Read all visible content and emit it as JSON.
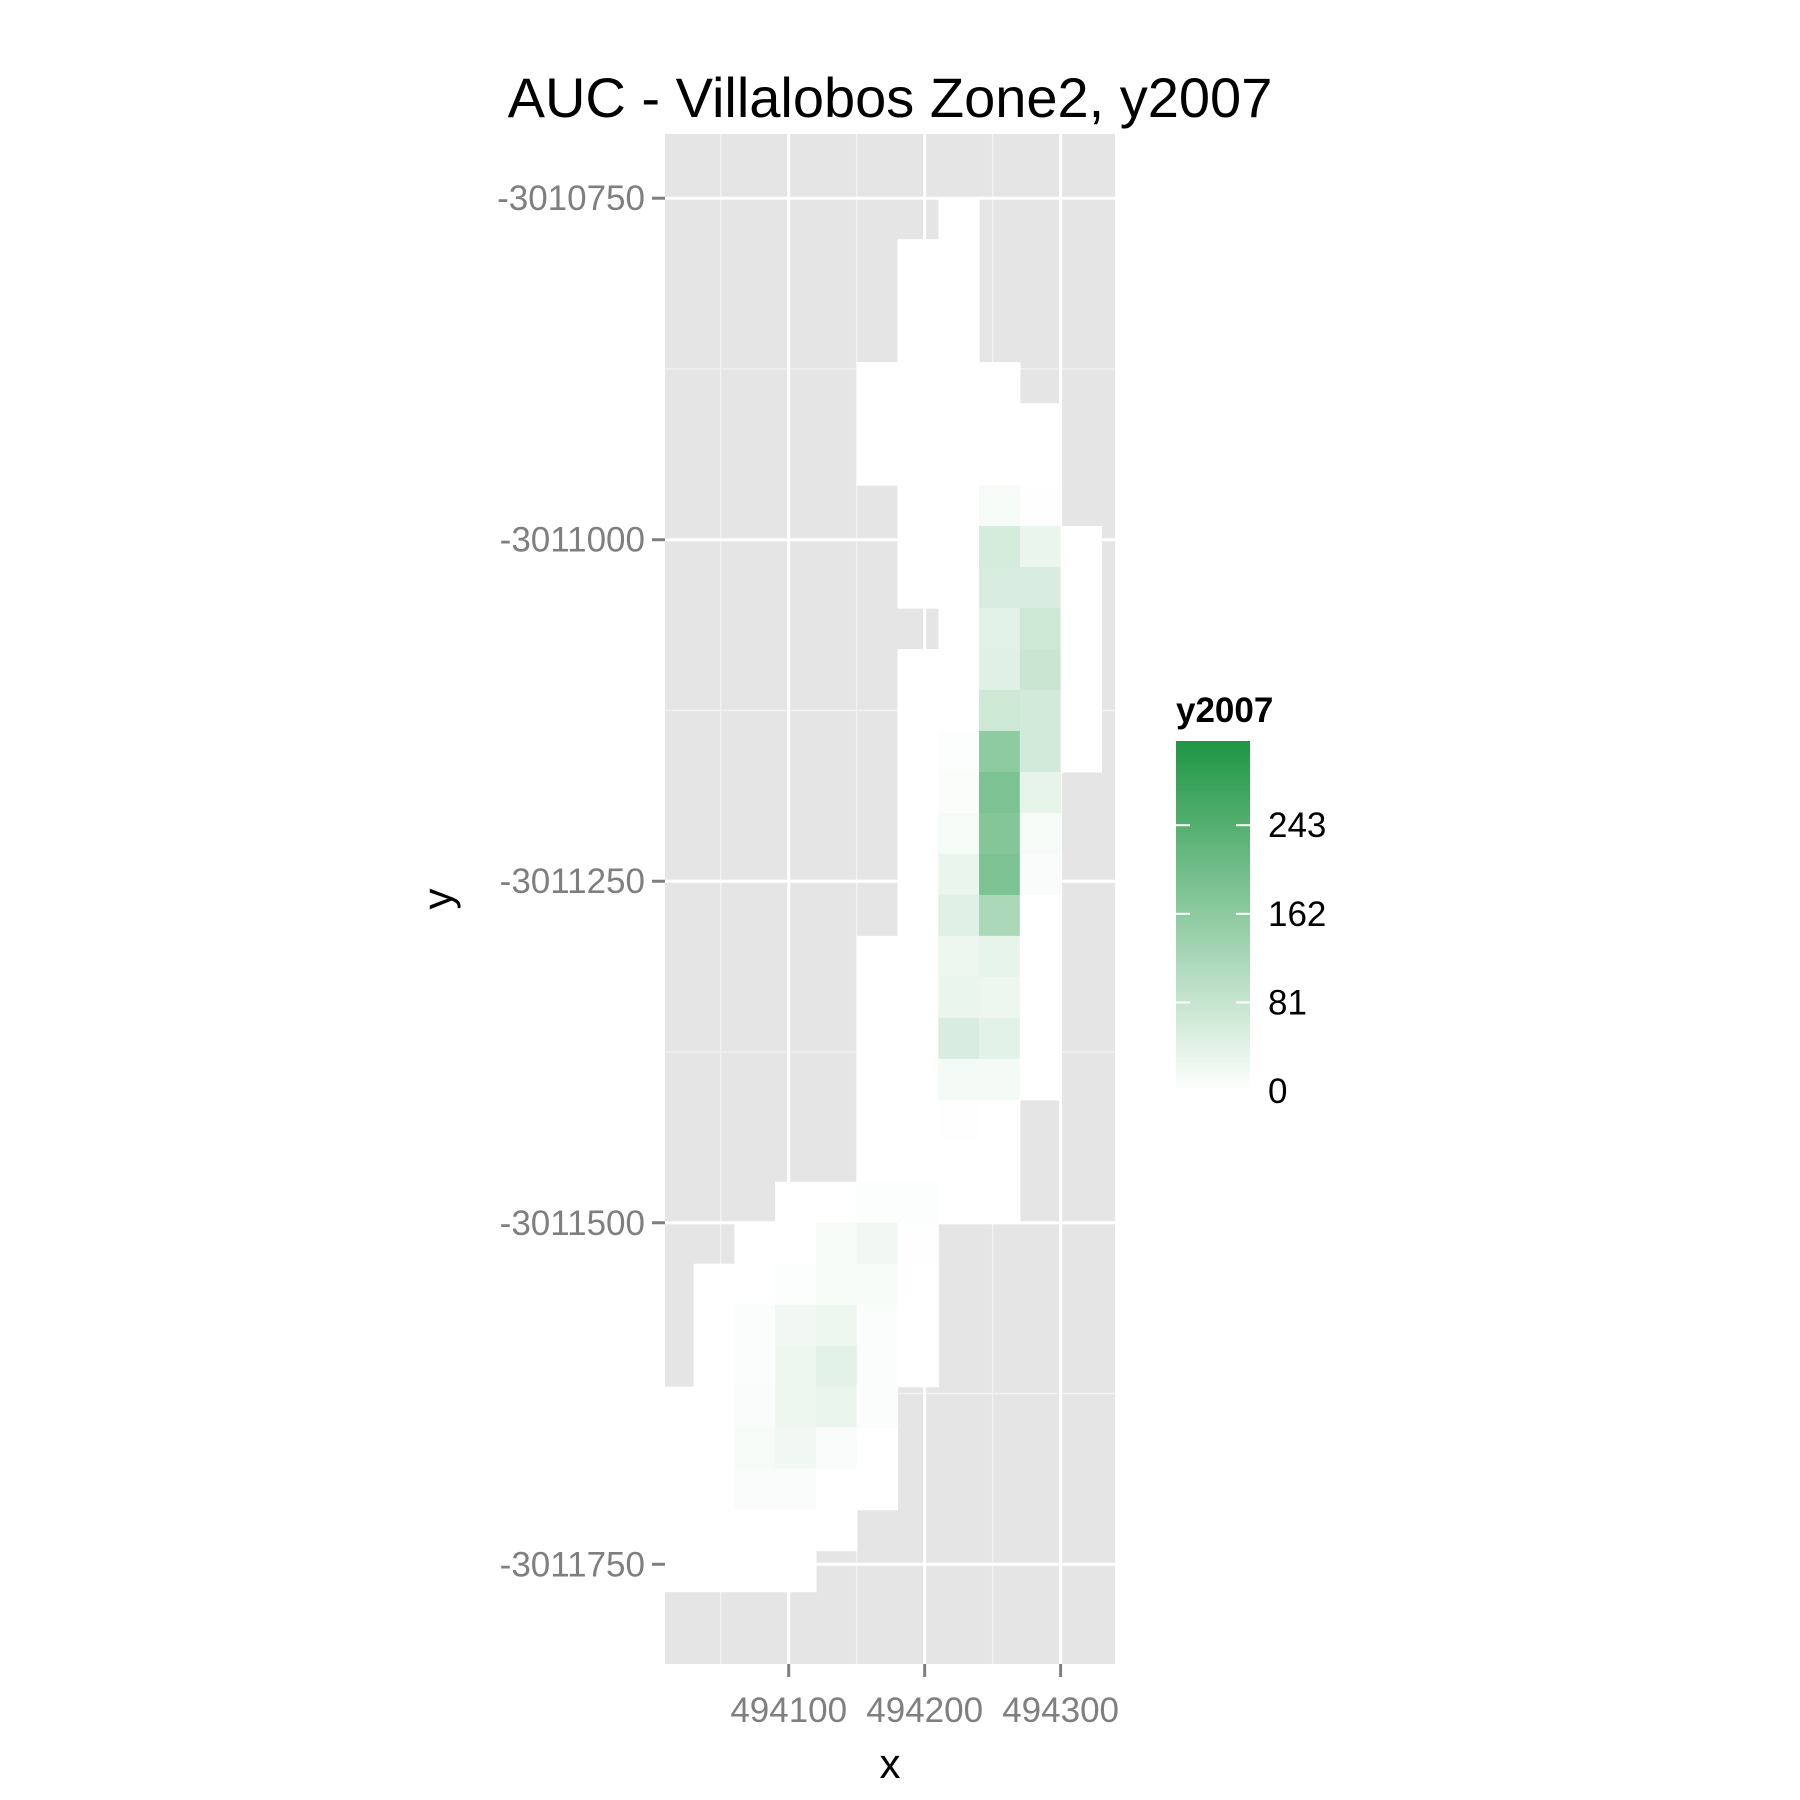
{
  "chart_data": {
    "type": "heatmap",
    "title": "AUC - Villalobos Zone2, y2007",
    "xlabel": "x",
    "ylabel": "y",
    "x_ticks": [
      494100,
      494200,
      494300
    ],
    "x_tick_labels": [
      "494100",
      "494200",
      "494300"
    ],
    "y_ticks": [
      -3010750,
      -3011000,
      -3011250,
      -3011500,
      -3011750
    ],
    "y_tick_labels": [
      "-3010750",
      "-3011000",
      "-3011250",
      "-3011500",
      "-3011750"
    ],
    "xlim": [
      494009,
      494340
    ],
    "ylim": [
      -3011823,
      -3010703
    ],
    "cell_size": 30,
    "fill_scale": {
      "name": "y2007",
      "low": "#ffffff",
      "high": "#1e9643",
      "limits": [
        0,
        320
      ],
      "breaks": [
        0,
        81,
        162,
        243
      ],
      "break_labels": [
        "0",
        "81",
        "162",
        "243"
      ]
    },
    "grid": true,
    "legend_position": "right",
    "cells": [
      {
        "x": 494225,
        "y": -3010765,
        "value": 0
      },
      {
        "x": 494195,
        "y": -3010795,
        "value": 0
      },
      {
        "x": 494225,
        "y": -3010795,
        "value": 0
      },
      {
        "x": 494195,
        "y": -3010825,
        "value": 0
      },
      {
        "x": 494225,
        "y": -3010825,
        "value": 0
      },
      {
        "x": 494195,
        "y": -3010855,
        "value": 0
      },
      {
        "x": 494225,
        "y": -3010855,
        "value": 0
      },
      {
        "x": 494165,
        "y": -3010885,
        "value": 0
      },
      {
        "x": 494195,
        "y": -3010885,
        "value": 0
      },
      {
        "x": 494225,
        "y": -3010885,
        "value": 0
      },
      {
        "x": 494255,
        "y": -3010885,
        "value": 0
      },
      {
        "x": 494165,
        "y": -3010915,
        "value": 0
      },
      {
        "x": 494195,
        "y": -3010915,
        "value": 0
      },
      {
        "x": 494225,
        "y": -3010915,
        "value": 0
      },
      {
        "x": 494255,
        "y": -3010915,
        "value": 0
      },
      {
        "x": 494285,
        "y": -3010915,
        "value": 0
      },
      {
        "x": 494165,
        "y": -3010945,
        "value": 0
      },
      {
        "x": 494195,
        "y": -3010945,
        "value": 0
      },
      {
        "x": 494225,
        "y": -3010945,
        "value": 0
      },
      {
        "x": 494255,
        "y": -3010945,
        "value": 0
      },
      {
        "x": 494285,
        "y": -3010945,
        "value": 0
      },
      {
        "x": 494195,
        "y": -3010975,
        "value": 0
      },
      {
        "x": 494225,
        "y": -3010975,
        "value": 0
      },
      {
        "x": 494255,
        "y": -3010975,
        "value": 12
      },
      {
        "x": 494285,
        "y": -3010975,
        "value": 3
      },
      {
        "x": 494195,
        "y": -3011005,
        "value": 0
      },
      {
        "x": 494225,
        "y": -3011005,
        "value": 0
      },
      {
        "x": 494255,
        "y": -3011005,
        "value": 60
      },
      {
        "x": 494285,
        "y": -3011005,
        "value": 30
      },
      {
        "x": 494315,
        "y": -3011005,
        "value": 0
      },
      {
        "x": 494195,
        "y": -3011035,
        "value": 0
      },
      {
        "x": 494225,
        "y": -3011035,
        "value": 0
      },
      {
        "x": 494255,
        "y": -3011035,
        "value": 55
      },
      {
        "x": 494285,
        "y": -3011035,
        "value": 55
      },
      {
        "x": 494315,
        "y": -3011035,
        "value": 0
      },
      {
        "x": 494225,
        "y": -3011065,
        "value": 0
      },
      {
        "x": 494255,
        "y": -3011065,
        "value": 40
      },
      {
        "x": 494285,
        "y": -3011065,
        "value": 70
      },
      {
        "x": 494315,
        "y": -3011065,
        "value": 0
      },
      {
        "x": 494195,
        "y": -3011095,
        "value": 0
      },
      {
        "x": 494225,
        "y": -3011095,
        "value": 0
      },
      {
        "x": 494255,
        "y": -3011095,
        "value": 45
      },
      {
        "x": 494285,
        "y": -3011095,
        "value": 75
      },
      {
        "x": 494315,
        "y": -3011095,
        "value": 0
      },
      {
        "x": 494195,
        "y": -3011125,
        "value": 0
      },
      {
        "x": 494225,
        "y": -3011125,
        "value": 0
      },
      {
        "x": 494255,
        "y": -3011125,
        "value": 70
      },
      {
        "x": 494285,
        "y": -3011125,
        "value": 65
      },
      {
        "x": 494315,
        "y": -3011125,
        "value": 0
      },
      {
        "x": 494195,
        "y": -3011155,
        "value": 0
      },
      {
        "x": 494225,
        "y": -3011155,
        "value": 4
      },
      {
        "x": 494255,
        "y": -3011155,
        "value": 160
      },
      {
        "x": 494285,
        "y": -3011155,
        "value": 65
      },
      {
        "x": 494315,
        "y": -3011155,
        "value": 0
      },
      {
        "x": 494195,
        "y": -3011185,
        "value": 0
      },
      {
        "x": 494225,
        "y": -3011185,
        "value": 6
      },
      {
        "x": 494255,
        "y": -3011185,
        "value": 185
      },
      {
        "x": 494285,
        "y": -3011185,
        "value": 35
      },
      {
        "x": 494195,
        "y": -3011215,
        "value": 0
      },
      {
        "x": 494225,
        "y": -3011215,
        "value": 12
      },
      {
        "x": 494255,
        "y": -3011215,
        "value": 175
      },
      {
        "x": 494285,
        "y": -3011215,
        "value": 12
      },
      {
        "x": 494195,
        "y": -3011245,
        "value": 0
      },
      {
        "x": 494225,
        "y": -3011245,
        "value": 30
      },
      {
        "x": 494255,
        "y": -3011245,
        "value": 185
      },
      {
        "x": 494285,
        "y": -3011245,
        "value": 8
      },
      {
        "x": 494195,
        "y": -3011275,
        "value": 0
      },
      {
        "x": 494225,
        "y": -3011275,
        "value": 45
      },
      {
        "x": 494255,
        "y": -3011275,
        "value": 120
      },
      {
        "x": 494285,
        "y": -3011275,
        "value": 0
      },
      {
        "x": 494165,
        "y": -3011305,
        "value": 0
      },
      {
        "x": 494195,
        "y": -3011305,
        "value": 0
      },
      {
        "x": 494225,
        "y": -3011305,
        "value": 25
      },
      {
        "x": 494255,
        "y": -3011305,
        "value": 35
      },
      {
        "x": 494285,
        "y": -3011305,
        "value": 0
      },
      {
        "x": 494165,
        "y": -3011335,
        "value": 0
      },
      {
        "x": 494195,
        "y": -3011335,
        "value": 0
      },
      {
        "x": 494225,
        "y": -3011335,
        "value": 30
      },
      {
        "x": 494255,
        "y": -3011335,
        "value": 25
      },
      {
        "x": 494285,
        "y": -3011335,
        "value": 0
      },
      {
        "x": 494165,
        "y": -3011365,
        "value": 0
      },
      {
        "x": 494195,
        "y": -3011365,
        "value": 0
      },
      {
        "x": 494225,
        "y": -3011365,
        "value": 55
      },
      {
        "x": 494255,
        "y": -3011365,
        "value": 40
      },
      {
        "x": 494285,
        "y": -3011365,
        "value": 0
      },
      {
        "x": 494165,
        "y": -3011395,
        "value": 0
      },
      {
        "x": 494195,
        "y": -3011395,
        "value": 0
      },
      {
        "x": 494225,
        "y": -3011395,
        "value": 15
      },
      {
        "x": 494255,
        "y": -3011395,
        "value": 15
      },
      {
        "x": 494285,
        "y": -3011395,
        "value": 0
      },
      {
        "x": 494165,
        "y": -3011425,
        "value": 0
      },
      {
        "x": 494195,
        "y": -3011425,
        "value": 0
      },
      {
        "x": 494225,
        "y": -3011425,
        "value": 3
      },
      {
        "x": 494255,
        "y": -3011425,
        "value": 0
      },
      {
        "x": 494165,
        "y": -3011455,
        "value": 0
      },
      {
        "x": 494195,
        "y": -3011455,
        "value": 0
      },
      {
        "x": 494225,
        "y": -3011455,
        "value": 0
      },
      {
        "x": 494255,
        "y": -3011455,
        "value": 0
      },
      {
        "x": 494105,
        "y": -3011485,
        "value": 0
      },
      {
        "x": 494135,
        "y": -3011485,
        "value": 0
      },
      {
        "x": 494165,
        "y": -3011485,
        "value": 4
      },
      {
        "x": 494195,
        "y": -3011485,
        "value": 4
      },
      {
        "x": 494225,
        "y": -3011485,
        "value": 0
      },
      {
        "x": 494255,
        "y": -3011485,
        "value": 0
      },
      {
        "x": 494075,
        "y": -3011515,
        "value": 0
      },
      {
        "x": 494105,
        "y": -3011515,
        "value": 0
      },
      {
        "x": 494135,
        "y": -3011515,
        "value": 10
      },
      {
        "x": 494165,
        "y": -3011515,
        "value": 20
      },
      {
        "x": 494195,
        "y": -3011515,
        "value": 3
      },
      {
        "x": 494045,
        "y": -3011545,
        "value": 0
      },
      {
        "x": 494075,
        "y": -3011545,
        "value": 0
      },
      {
        "x": 494105,
        "y": -3011545,
        "value": 4
      },
      {
        "x": 494135,
        "y": -3011545,
        "value": 12
      },
      {
        "x": 494165,
        "y": -3011545,
        "value": 12
      },
      {
        "x": 494195,
        "y": -3011545,
        "value": 0
      },
      {
        "x": 494045,
        "y": -3011575,
        "value": 0
      },
      {
        "x": 494075,
        "y": -3011575,
        "value": 5
      },
      {
        "x": 494105,
        "y": -3011575,
        "value": 20
      },
      {
        "x": 494135,
        "y": -3011575,
        "value": 25
      },
      {
        "x": 494165,
        "y": -3011575,
        "value": 5
      },
      {
        "x": 494195,
        "y": -3011575,
        "value": 0
      },
      {
        "x": 494045,
        "y": -3011605,
        "value": 0
      },
      {
        "x": 494075,
        "y": -3011605,
        "value": 5
      },
      {
        "x": 494105,
        "y": -3011605,
        "value": 25
      },
      {
        "x": 494135,
        "y": -3011605,
        "value": 40
      },
      {
        "x": 494165,
        "y": -3011605,
        "value": 5
      },
      {
        "x": 494195,
        "y": -3011605,
        "value": 0
      },
      {
        "x": 494015,
        "y": -3011635,
        "value": 0
      },
      {
        "x": 494045,
        "y": -3011635,
        "value": 0
      },
      {
        "x": 494075,
        "y": -3011635,
        "value": 8
      },
      {
        "x": 494105,
        "y": -3011635,
        "value": 25
      },
      {
        "x": 494135,
        "y": -3011635,
        "value": 30
      },
      {
        "x": 494165,
        "y": -3011635,
        "value": 5
      },
      {
        "x": 494015,
        "y": -3011665,
        "value": 0
      },
      {
        "x": 494045,
        "y": -3011665,
        "value": 0
      },
      {
        "x": 494075,
        "y": -3011665,
        "value": 12
      },
      {
        "x": 494105,
        "y": -3011665,
        "value": 20
      },
      {
        "x": 494135,
        "y": -3011665,
        "value": 8
      },
      {
        "x": 494165,
        "y": -3011665,
        "value": 0
      },
      {
        "x": 494015,
        "y": -3011695,
        "value": 0
      },
      {
        "x": 494045,
        "y": -3011695,
        "value": 0
      },
      {
        "x": 494075,
        "y": -3011695,
        "value": 8
      },
      {
        "x": 494105,
        "y": -3011695,
        "value": 8
      },
      {
        "x": 494135,
        "y": -3011695,
        "value": 0
      },
      {
        "x": 494165,
        "y": -3011695,
        "value": 0
      },
      {
        "x": 494015,
        "y": -3011725,
        "value": 0
      },
      {
        "x": 494045,
        "y": -3011725,
        "value": 0
      },
      {
        "x": 494075,
        "y": -3011725,
        "value": 0
      },
      {
        "x": 494105,
        "y": -3011725,
        "value": 0
      },
      {
        "x": 494135,
        "y": -3011725,
        "value": 0
      },
      {
        "x": 494015,
        "y": -3011755,
        "value": 0
      },
      {
        "x": 494045,
        "y": -3011755,
        "value": 0
      },
      {
        "x": 494075,
        "y": -3011755,
        "value": 0
      },
      {
        "x": 494105,
        "y": -3011755,
        "value": 0
      }
    ]
  }
}
